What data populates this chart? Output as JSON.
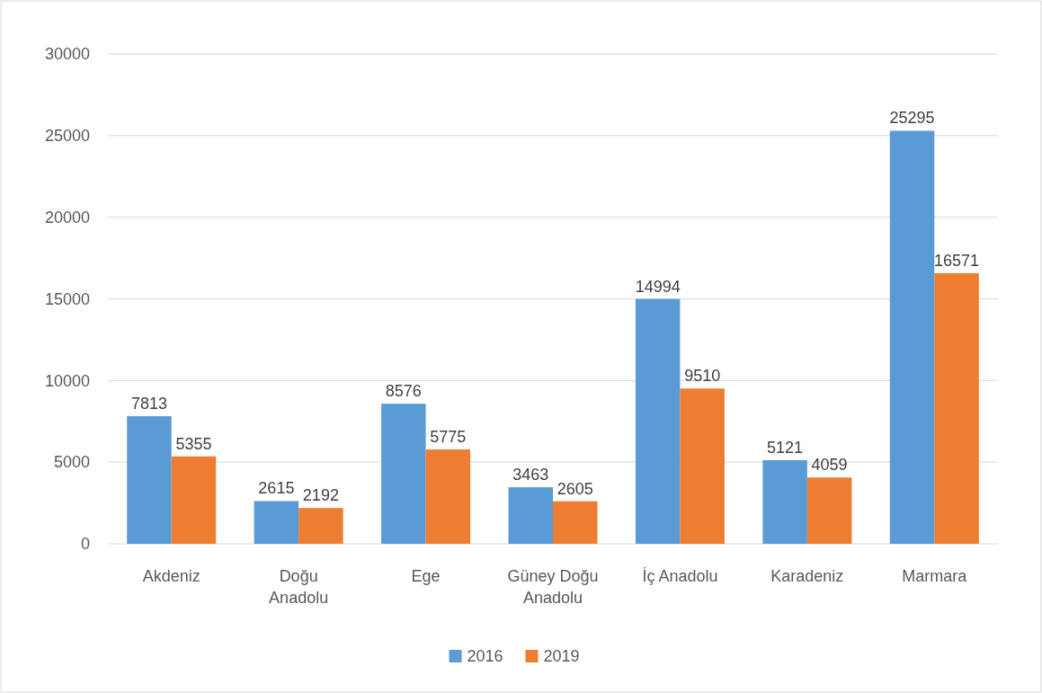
{
  "chart_data": {
    "type": "bar",
    "categories": [
      "Akdeniz",
      "Doğu Anadolu",
      "Ege",
      "Güney Doğu Anadolu",
      "İç Anadolu",
      "Karadeniz",
      "Marmara"
    ],
    "series": [
      {
        "name": "2016",
        "color": "#5b9bd5",
        "values": [
          7813,
          2615,
          8576,
          3463,
          14994,
          5121,
          25295
        ]
      },
      {
        "name": "2019",
        "color": "#ed7d31",
        "values": [
          5355,
          2192,
          5775,
          2605,
          9510,
          4059,
          16571
        ]
      }
    ],
    "ylim": [
      0,
      30000
    ],
    "yticks": [
      0,
      5000,
      10000,
      15000,
      20000,
      25000,
      30000
    ],
    "grid": "y",
    "legend": "bottom",
    "data_labels": true
  }
}
